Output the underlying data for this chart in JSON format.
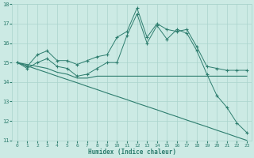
{
  "xlabel": "Humidex (Indice chaleur)",
  "x": [
    0,
    1,
    2,
    3,
    4,
    5,
    6,
    7,
    8,
    9,
    10,
    11,
    12,
    13,
    14,
    15,
    16,
    17,
    18,
    19,
    20,
    21,
    22,
    23
  ],
  "line_spiky": [
    15.0,
    14.8,
    15.4,
    15.6,
    15.1,
    15.1,
    14.9,
    15.1,
    15.3,
    15.4,
    16.3,
    16.6,
    17.8,
    16.3,
    17.0,
    16.7,
    16.6,
    16.7,
    15.8,
    14.8,
    14.7,
    14.6,
    14.6,
    14.6
  ],
  "line_spiky2": [
    15.0,
    14.7,
    15.0,
    15.2,
    14.8,
    14.7,
    14.3,
    14.4,
    14.7,
    15.0,
    15.0,
    16.4,
    17.5,
    16.0,
    16.9,
    16.2,
    16.7,
    16.5,
    15.6,
    14.4,
    13.3,
    12.7,
    11.9,
    11.4
  ],
  "line_flat": [
    15.0,
    14.9,
    14.8,
    14.7,
    14.5,
    14.4,
    14.2,
    14.2,
    14.3,
    14.3,
    14.3,
    14.3,
    14.3,
    14.3,
    14.3,
    14.3,
    14.3,
    14.3,
    14.3,
    14.3,
    14.3,
    14.3,
    14.3,
    14.3
  ],
  "line_diagonal": [
    15.0,
    14.83,
    14.65,
    14.48,
    14.3,
    14.13,
    13.96,
    13.78,
    13.61,
    13.43,
    13.26,
    13.09,
    12.91,
    12.74,
    12.57,
    12.39,
    12.22,
    12.04,
    11.87,
    11.7,
    11.52,
    11.35,
    11.17,
    11.0
  ],
  "ylim": [
    11,
    18
  ],
  "xlim": [
    -0.5,
    23.5
  ],
  "yticks": [
    11,
    12,
    13,
    14,
    15,
    16,
    17,
    18
  ],
  "xticks": [
    0,
    1,
    2,
    3,
    4,
    5,
    6,
    7,
    8,
    9,
    10,
    11,
    12,
    13,
    14,
    15,
    16,
    17,
    18,
    19,
    20,
    21,
    22,
    23
  ],
  "line_color": "#2d7d6e",
  "bg_color": "#cceae4",
  "grid_color": "#aad4cc",
  "marker": "+"
}
